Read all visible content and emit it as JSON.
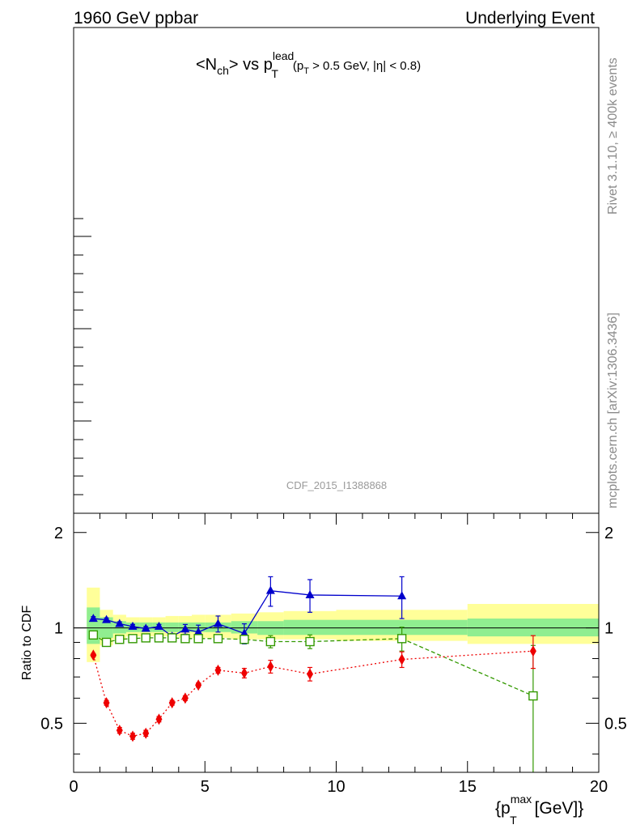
{
  "header": {
    "left": "1960 GeV ppbar",
    "right": "Underlying Event"
  },
  "side": {
    "rivet": "Rivet 3.1.10, ≥ 400k events",
    "mcplots": "mcplots.cern.ch [arXiv:1306.3436]"
  },
  "analysis_id": "CDF_2015_I1388868",
  "main_panel": {
    "title_parts": {
      "pre": "<N",
      "sub1": "ch",
      "mid": "> vs p",
      "sup": "lead",
      "sub2": "T",
      "cut_pre": "(p",
      "cut_sub": "T",
      "cut_post": " > 0.5 GeV, |η| < 0.8)"
    }
  },
  "ratio_panel": {
    "ylabel": "Ratio to CDF",
    "xlabel_parts": {
      "pre": "{p",
      "sup": "max",
      "sub": "T",
      "post": " [GeV]}"
    }
  },
  "chart_data": {
    "type": "scatter",
    "xlim": [
      0,
      20
    ],
    "ylim": [
      0.35,
      2.3
    ],
    "yscale": "log",
    "x_ticks": [
      "0",
      "5",
      "10",
      "15",
      "20"
    ],
    "y_ticks": [
      "0.5",
      "1",
      "2"
    ],
    "reference_bins": {
      "edges": [
        0.5,
        1.0,
        1.5,
        2.0,
        2.5,
        3.0,
        3.5,
        4.0,
        4.5,
        5.0,
        6.0,
        7.0,
        8.0,
        10.0,
        15.0,
        20.0
      ],
      "inner_lo": [
        0.89,
        0.93,
        0.96,
        0.97,
        0.97,
        0.97,
        0.97,
        0.97,
        0.97,
        0.97,
        0.96,
        0.95,
        0.95,
        0.95,
        0.94
      ],
      "inner_hi": [
        1.16,
        1.08,
        1.05,
        1.04,
        1.04,
        1.04,
        1.04,
        1.04,
        1.04,
        1.04,
        1.05,
        1.05,
        1.06,
        1.06,
        1.07
      ],
      "outer_lo": [
        0.78,
        0.88,
        0.92,
        0.94,
        0.94,
        0.94,
        0.94,
        0.93,
        0.93,
        0.93,
        0.92,
        0.92,
        0.92,
        0.91,
        0.89
      ],
      "outer_hi": [
        1.34,
        1.14,
        1.1,
        1.08,
        1.08,
        1.08,
        1.09,
        1.09,
        1.1,
        1.1,
        1.11,
        1.12,
        1.13,
        1.14,
        1.19
      ],
      "inner_color": "#90ee90",
      "outer_color": "#ffff99"
    },
    "series": [
      {
        "marker": "triangle",
        "color": "#0000cc",
        "dash": "",
        "x": [
          0.75,
          1.25,
          1.75,
          2.25,
          2.75,
          3.25,
          3.75,
          4.25,
          4.75,
          5.5,
          6.5,
          7.5,
          9.0,
          12.5
        ],
        "y": [
          1.07,
          1.06,
          1.03,
          1.01,
          0.995,
          1.01,
          0.94,
          0.99,
          0.97,
          1.03,
          0.96,
          1.31,
          1.27,
          1.26
        ],
        "err": [
          0.015,
          0.015,
          0.015,
          0.015,
          0.015,
          0.015,
          0.02,
          0.035,
          0.05,
          0.06,
          0.07,
          0.14,
          0.15,
          0.19
        ]
      },
      {
        "marker": "open-square",
        "color": "#339900",
        "dash": "5,3",
        "x": [
          0.75,
          1.25,
          1.75,
          2.25,
          2.75,
          3.25,
          3.75,
          4.25,
          4.75,
          5.5,
          6.5,
          7.5,
          9.0,
          12.5,
          17.5
        ],
        "y": [
          0.95,
          0.9,
          0.92,
          0.925,
          0.93,
          0.93,
          0.93,
          0.925,
          0.925,
          0.925,
          0.92,
          0.905,
          0.905,
          0.925,
          0.61
        ],
        "err": [
          0.01,
          0.01,
          0.01,
          0.01,
          0.01,
          0.01,
          0.01,
          0.01,
          0.01,
          0.015,
          0.02,
          0.04,
          0.045,
          0.08,
          0.27
        ]
      },
      {
        "marker": "diamond",
        "color": "#ee0000",
        "dash": "2,3",
        "x": [
          0.75,
          1.25,
          1.75,
          2.25,
          2.75,
          3.25,
          3.75,
          4.25,
          4.75,
          5.5,
          6.5,
          7.5,
          9.0,
          12.5,
          17.5
        ],
        "y": [
          0.82,
          0.58,
          0.475,
          0.455,
          0.465,
          0.515,
          0.58,
          0.6,
          0.66,
          0.735,
          0.72,
          0.755,
          0.715,
          0.795,
          0.845
        ],
        "err": [
          0.01,
          0.01,
          0.01,
          0.01,
          0.01,
          0.01,
          0.01,
          0.01,
          0.01,
          0.015,
          0.025,
          0.035,
          0.035,
          0.045,
          0.1
        ]
      }
    ]
  }
}
